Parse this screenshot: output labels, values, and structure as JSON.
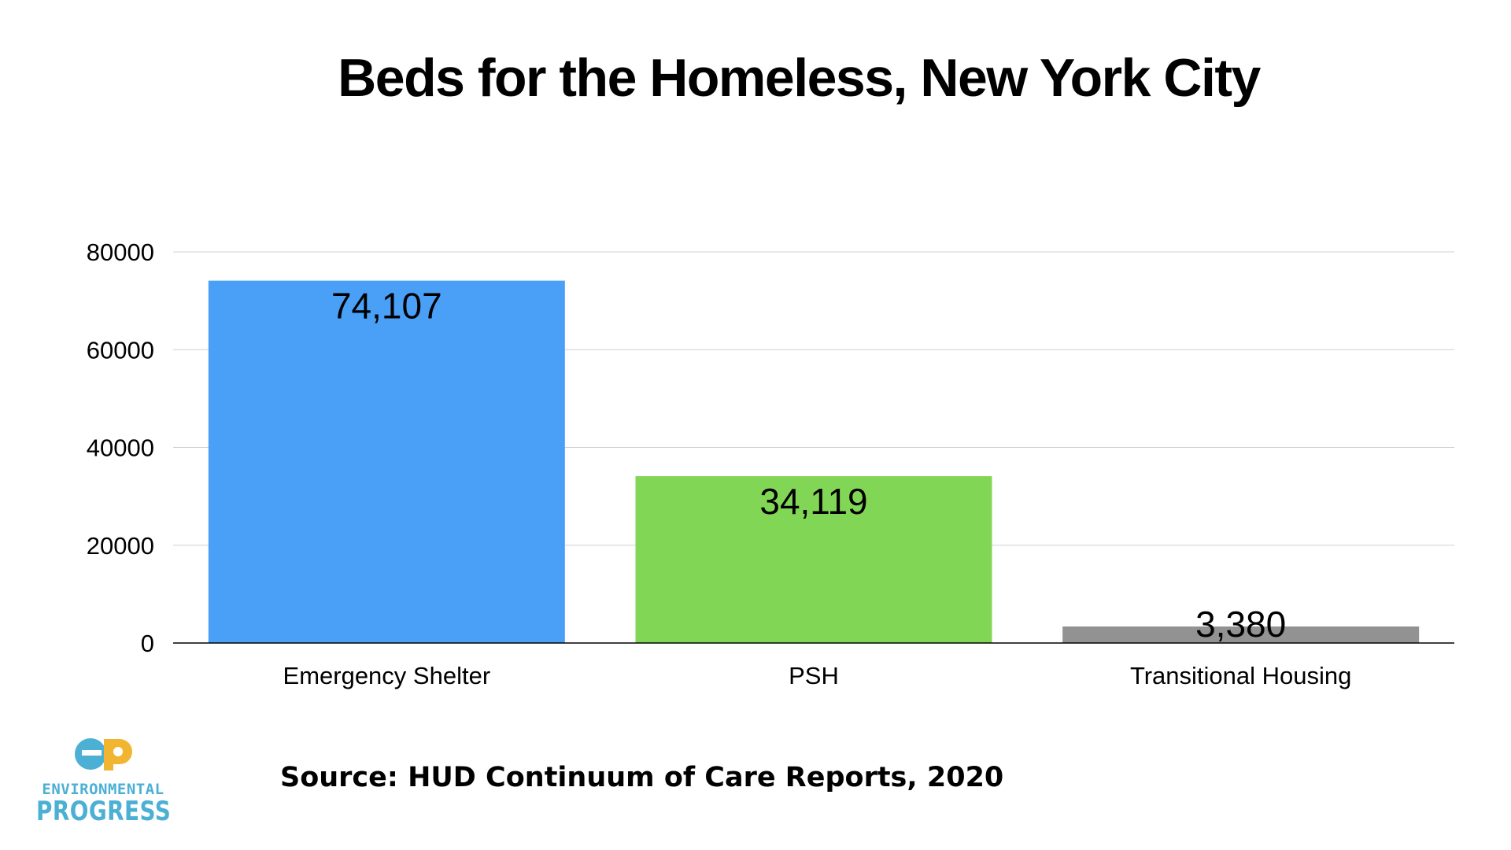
{
  "chart_data": {
    "type": "bar",
    "title": "Beds for the Homeless, New York City",
    "categories": [
      "Emergency Shelter",
      "PSH",
      "Transitional Housing"
    ],
    "values": [
      74107,
      34119,
      3380
    ],
    "value_labels": [
      "74,107",
      "34,119",
      "3,380"
    ],
    "colors": [
      "#4aa0f7",
      "#82d655",
      "#929292"
    ],
    "ylim": [
      0,
      80000
    ],
    "yticks": [
      0,
      20000,
      40000,
      60000,
      80000
    ],
    "ytick_labels": [
      "0",
      "20000",
      "40000",
      "60000",
      "80000"
    ],
    "xlabel": "",
    "ylabel": "",
    "grid": true,
    "legend": "none"
  },
  "source_text": "Source: HUD Continuum of Care Reports, 2020",
  "logo": {
    "top_text": "ENVIRONMENTAL",
    "bottom_text": "PROGRESS",
    "colors": {
      "blue": "#4cb0d4",
      "yellow": "#f2b531"
    }
  }
}
